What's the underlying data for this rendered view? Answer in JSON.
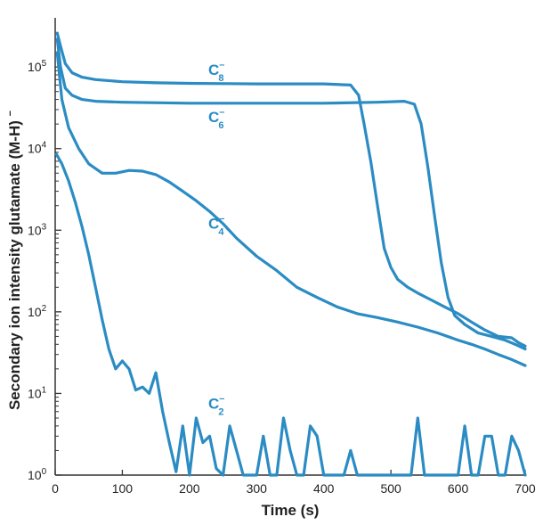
{
  "chart_data": {
    "type": "line",
    "xlabel": "Time (s)",
    "ylabel": "Secondary ion intensity glutamate (M-H)",
    "ylabel_superscript": "−",
    "ylog": true,
    "xlim": [
      0,
      700
    ],
    "ylim": [
      1,
      400000
    ],
    "xticks": [
      0,
      100,
      200,
      300,
      400,
      500,
      600,
      700
    ],
    "yticks": [
      {
        "value": 1,
        "base": "10",
        "exp": "0"
      },
      {
        "value": 10,
        "base": "10",
        "exp": "1"
      },
      {
        "value": 100,
        "base": "10",
        "exp": "2"
      },
      {
        "value": 1000,
        "base": "10",
        "exp": "3"
      },
      {
        "value": 10000,
        "base": "10",
        "exp": "4"
      },
      {
        "value": 100000,
        "base": "10",
        "exp": "5"
      }
    ],
    "color": "#2b8cc4",
    "series": [
      {
        "name": "C8",
        "label_main": "C",
        "label_sub": "8",
        "label_sup": "–",
        "x": [
          3,
          8,
          15,
          25,
          40,
          60,
          100,
          150,
          200,
          250,
          300,
          350,
          400,
          440,
          452,
          460,
          470,
          480,
          490,
          500,
          510,
          525,
          540,
          560,
          580,
          600,
          620,
          640,
          660,
          680,
          690,
          700
        ],
        "y": [
          260000,
          180000,
          110000,
          85000,
          75000,
          70000,
          66000,
          64000,
          63000,
          62500,
          62000,
          62000,
          62000,
          60000,
          45000,
          20000,
          7000,
          2000,
          600,
          350,
          250,
          200,
          170,
          140,
          115,
          95,
          75,
          60,
          50,
          48,
          42,
          38
        ]
      },
      {
        "name": "C6",
        "label_main": "C",
        "label_sub": "6",
        "label_sup": "–",
        "x": [
          3,
          8,
          15,
          25,
          40,
          60,
          100,
          200,
          300,
          400,
          480,
          520,
          535,
          545,
          555,
          565,
          575,
          585,
          595,
          610,
          630,
          650,
          670,
          685,
          700
        ],
        "y": [
          220000,
          100000,
          55000,
          45000,
          40000,
          38000,
          37000,
          36000,
          36000,
          36000,
          37000,
          38000,
          35000,
          20000,
          6000,
          1500,
          400,
          150,
          90,
          70,
          55,
          50,
          45,
          40,
          35
        ]
      },
      {
        "name": "C4",
        "label_main": "C",
        "label_sub": "4",
        "label_sup": "–",
        "x": [
          3,
          10,
          20,
          35,
          50,
          70,
          90,
          110,
          130,
          150,
          170,
          190,
          210,
          230,
          250,
          270,
          300,
          330,
          360,
          390,
          420,
          450,
          480,
          510,
          540,
          570,
          600,
          620,
          640,
          660,
          680,
          700
        ],
        "y": [
          150000,
          40000,
          18000,
          10000,
          6500,
          5000,
          5000,
          5400,
          5300,
          4800,
          3900,
          3000,
          2300,
          1700,
          1200,
          800,
          480,
          320,
          200,
          150,
          115,
          95,
          85,
          75,
          65,
          55,
          45,
          40,
          35,
          30,
          26,
          22
        ]
      },
      {
        "name": "C2",
        "label_main": "C",
        "label_sub": "2",
        "label_sup": "–",
        "x": [
          2,
          10,
          20,
          30,
          40,
          50,
          60,
          70,
          80,
          90,
          100,
          110,
          120,
          130,
          140,
          150,
          160,
          170,
          180,
          190,
          200,
          210,
          220,
          230,
          240,
          250,
          260,
          270,
          280,
          290,
          300,
          310,
          320,
          330,
          340,
          350,
          360,
          370,
          380,
          390,
          400,
          410,
          420,
          430,
          440,
          450,
          460,
          470,
          480,
          490,
          500,
          510,
          520,
          530,
          540,
          550,
          560,
          570,
          580,
          590,
          600,
          610,
          620,
          630,
          640,
          650,
          660,
          670,
          680,
          690,
          700
        ],
        "y": [
          8500,
          6500,
          4000,
          2200,
          1100,
          500,
          200,
          80,
          35,
          20,
          25,
          20,
          11,
          12,
          10,
          18,
          6,
          2.5,
          1.1,
          4,
          1,
          5,
          2.5,
          3,
          1.2,
          1,
          4,
          2,
          1,
          1,
          1,
          3,
          1,
          1,
          5,
          2,
          1,
          1,
          4,
          3,
          1,
          1,
          1,
          1,
          2,
          1,
          1,
          1,
          1,
          1,
          1,
          1,
          1,
          1,
          5,
          1,
          1,
          1,
          1,
          1,
          1,
          4,
          1,
          1,
          3,
          3,
          1,
          1,
          3,
          2,
          1
        ]
      }
    ],
    "annotations": [
      {
        "series": "C8",
        "x": 228,
        "y": 80000
      },
      {
        "series": "C6",
        "x": 228,
        "y": 21000
      },
      {
        "series": "C4",
        "x": 228,
        "y": 1050
      },
      {
        "series": "C2",
        "x": 228,
        "y": 6.5
      }
    ]
  }
}
